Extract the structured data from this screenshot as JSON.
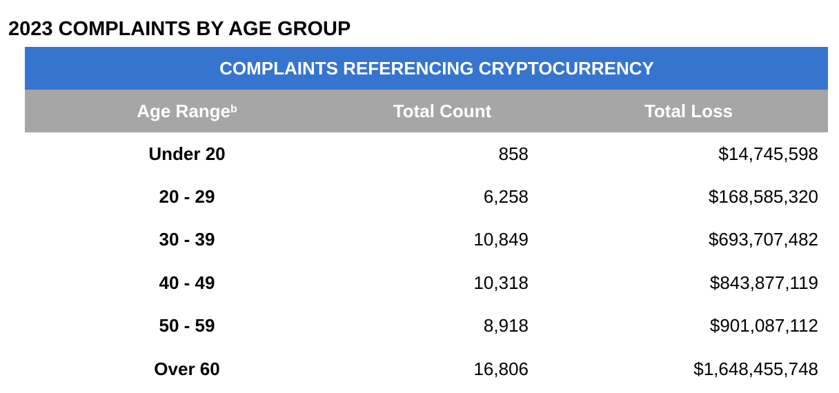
{
  "page_title": "2023 COMPLAINTS BY AGE GROUP",
  "table": {
    "banner": "COMPLAINTS REFERENCING CRYPTOCURRENCY",
    "banner_color": "#3575CF",
    "header_color": "#A6A6A6",
    "columns": {
      "age_range": "Age Range",
      "age_range_footnote": "b",
      "total_count": "Total Count",
      "total_loss": "Total Loss"
    },
    "rows": [
      {
        "age_range": "Under 20",
        "total_count": "858",
        "total_loss": "$14,745,598"
      },
      {
        "age_range": "20 - 29",
        "total_count": "6,258",
        "total_loss": "$168,585,320"
      },
      {
        "age_range": "30 - 39",
        "total_count": "10,849",
        "total_loss": "$693,707,482"
      },
      {
        "age_range": "40 - 49",
        "total_count": "10,318",
        "total_loss": "$843,877,119"
      },
      {
        "age_range": "50 - 59",
        "total_count": "8,918",
        "total_loss": "$901,087,112"
      },
      {
        "age_range": "Over 60",
        "total_count": "16,806",
        "total_loss": "$1,648,455,748"
      }
    ]
  }
}
